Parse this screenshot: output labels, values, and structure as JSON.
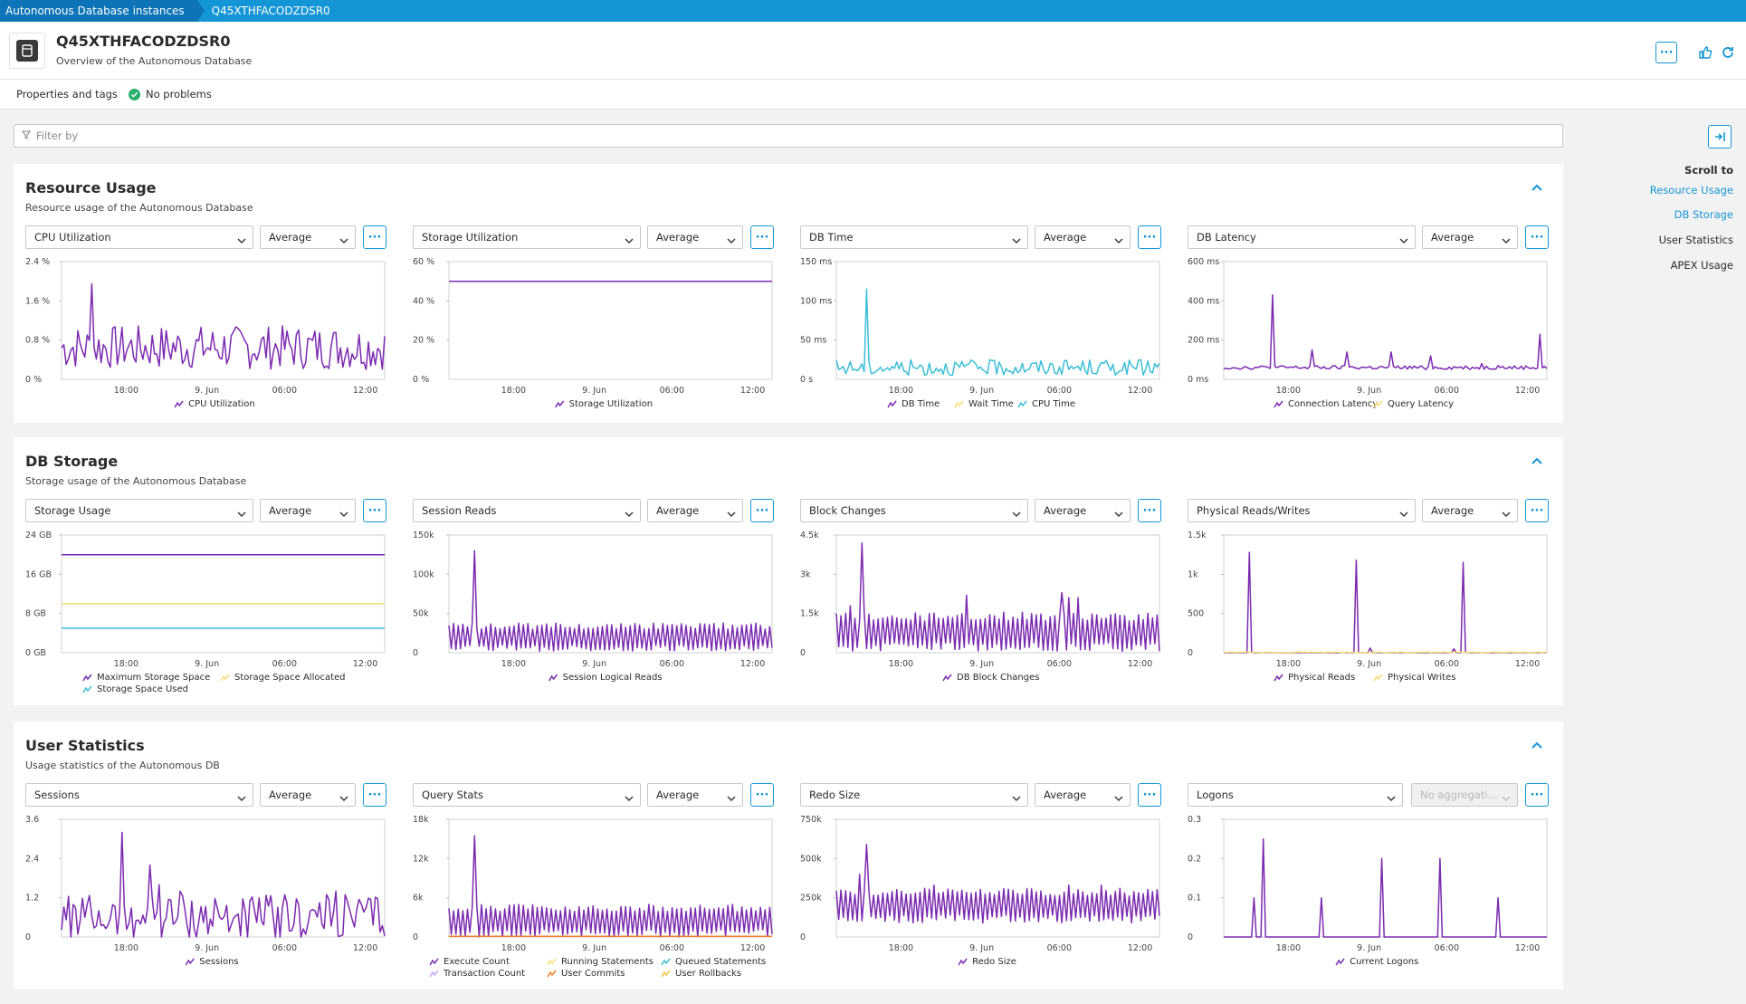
{
  "breadcrumb": [
    "Autonomous Database instances",
    "Q45XTHFACODZDSR0"
  ],
  "header": {
    "title": "Q45XTHFACODZDSR0",
    "subtitle": "Overview of the Autonomous Database"
  },
  "subbar": {
    "properties": "Properties and tags",
    "status": "No problems"
  },
  "filter": {
    "placeholder": "Filter by"
  },
  "scroll_to": {
    "title": "Scroll to",
    "links": [
      {
        "label": "Resource Usage",
        "active": true
      },
      {
        "label": "DB Storage",
        "active": true
      },
      {
        "label": "User Statistics",
        "active": false
      },
      {
        "label": "APEX Usage",
        "active": false
      }
    ]
  },
  "colors": {
    "accent": "#1496d6",
    "purple": "#7b2bb0",
    "yellow": "#f5de73",
    "cyan": "#3cbed7",
    "lavender": "#c9a2ec",
    "orange": "#f07b28",
    "ok": "#2ab06f"
  },
  "x_ticks": [
    "18:00",
    "9. Jun",
    "06:00",
    "12:00"
  ],
  "sections": [
    {
      "title": "Resource Usage",
      "subtitle": "Resource usage of the Autonomous Database",
      "tiles": [
        {
          "metric": "CPU Utilization",
          "agg": "Average",
          "agg_disabled": false,
          "chart_data": {
            "type": "line",
            "y_ticks": [
              "2.4 %",
              "1.6 %",
              "0.8 %",
              "0 %"
            ],
            "ylim": [
              0,
              2.4
            ],
            "series": [
              {
                "name": "CPU Utilization",
                "color": "#7b2bb0",
                "pattern": "noisy",
                "base": 0.65,
                "amp": 0.45,
                "spikes": [
                  [
                    0.09,
                    1.95
                  ]
                ]
              }
            ]
          },
          "legend": [
            {
              "label": "CPU Utilization",
              "color": "#7b2bb0"
            }
          ]
        },
        {
          "metric": "Storage Utilization",
          "agg": "Average",
          "agg_disabled": false,
          "chart_data": {
            "type": "line",
            "y_ticks": [
              "60 %",
              "40 %",
              "20 %",
              "0 %"
            ],
            "ylim": [
              0,
              60
            ],
            "series": [
              {
                "name": "Storage Utilization",
                "color": "#7b2bb0",
                "pattern": "flat",
                "base": 50
              }
            ]
          },
          "legend": [
            {
              "label": "Storage Utilization",
              "color": "#7b2bb0"
            }
          ]
        },
        {
          "metric": "DB Time",
          "agg": "Average",
          "agg_disabled": false,
          "chart_data": {
            "type": "line",
            "y_ticks": [
              "150 ms",
              "100 ms",
              "50 ms",
              "0 s"
            ],
            "ylim": [
              0,
              150
            ],
            "series": [
              {
                "name": "CPU Time",
                "color": "#3cbed7",
                "pattern": "noisy",
                "base": 15,
                "amp": 10,
                "spikes": [
                  [
                    0.09,
                    115
                  ]
                ]
              }
            ]
          },
          "legend": [
            {
              "label": "DB Time",
              "color": "#7b2bb0"
            },
            {
              "label": "Wait Time",
              "color": "#f5de73"
            },
            {
              "label": "CPU Time",
              "color": "#3cbed7"
            }
          ]
        },
        {
          "metric": "DB Latency",
          "agg": "Average",
          "agg_disabled": false,
          "chart_data": {
            "type": "line",
            "y_ticks": [
              "600 ms",
              "400 ms",
              "200 ms",
              "0 ms"
            ],
            "ylim": [
              0,
              600
            ],
            "series": [
              {
                "name": "Connection Latency",
                "color": "#7b2bb0",
                "pattern": "low",
                "base": 60,
                "amp": 10,
                "spikes": [
                  [
                    0.15,
                    430
                  ],
                  [
                    0.27,
                    150
                  ],
                  [
                    0.38,
                    140
                  ],
                  [
                    0.52,
                    140
                  ],
                  [
                    0.64,
                    120
                  ],
                  [
                    0.8,
                    80
                  ],
                  [
                    0.85,
                    70
                  ],
                  [
                    0.98,
                    230
                  ]
                ]
              }
            ]
          },
          "legend": [
            {
              "label": "Connection Latency",
              "color": "#7b2bb0"
            },
            {
              "label": "Query Latency",
              "color": "#f5de73"
            }
          ]
        }
      ]
    },
    {
      "title": "DB Storage",
      "subtitle": "Storage usage of the Autonomous Database",
      "tiles": [
        {
          "metric": "Storage Usage",
          "agg": "Average",
          "agg_disabled": false,
          "chart_data": {
            "type": "line",
            "y_ticks": [
              "24 GB",
              "16 GB",
              "8 GB",
              "0 GB"
            ],
            "ylim": [
              0,
              24
            ],
            "series": [
              {
                "name": "Maximum Storage Space",
                "color": "#7b2bb0",
                "pattern": "flat",
                "base": 20
              },
              {
                "name": "Storage Space Allocated",
                "color": "#f5de73",
                "pattern": "flat",
                "base": 10
              },
              {
                "name": "Storage Space Used",
                "color": "#3cbed7",
                "pattern": "flat",
                "base": 5
              }
            ]
          },
          "legend": [
            {
              "label": "Maximum Storage Space",
              "color": "#7b2bb0"
            },
            {
              "label": "Storage Space Allocated",
              "color": "#f5de73"
            },
            {
              "label": "Storage Space Used",
              "color": "#3cbed7"
            }
          ]
        },
        {
          "metric": "Session Reads",
          "agg": "Average",
          "agg_disabled": false,
          "chart_data": {
            "type": "line",
            "y_ticks": [
              "150k",
              "100k",
              "50k",
              "0"
            ],
            "ylim": [
              0,
              150000
            ],
            "series": [
              {
                "name": "Session Logical Reads",
                "color": "#7b2bb0",
                "pattern": "wave",
                "base": 20000,
                "amp": 18000,
                "spikes": [
                  [
                    0.08,
                    130000
                  ]
                ]
              }
            ]
          },
          "legend": [
            {
              "label": "Session Logical Reads",
              "color": "#7b2bb0"
            }
          ]
        },
        {
          "metric": "Block Changes",
          "agg": "Average",
          "agg_disabled": false,
          "chart_data": {
            "type": "line",
            "y_ticks": [
              "4.5k",
              "3k",
              "1.5k",
              "0"
            ],
            "ylim": [
              0,
              4500
            ],
            "series": [
              {
                "name": "DB Block Changes",
                "color": "#7b2bb0",
                "pattern": "wave",
                "base": 800,
                "amp": 750,
                "spikes": [
                  [
                    0.08,
                    4200
                  ],
                  [
                    0.04,
                    1800
                  ],
                  [
                    0.4,
                    2200
                  ],
                  [
                    0.72,
                    2100
                  ],
                  [
                    0.75,
                    2100
                  ],
                  [
                    0.7,
                    2300
                  ]
                ]
              }
            ]
          },
          "legend": [
            {
              "label": "DB Block Changes",
              "color": "#7b2bb0"
            }
          ]
        },
        {
          "metric": "Physical Reads/Writes",
          "agg": "Average",
          "agg_disabled": false,
          "chart_data": {
            "type": "line",
            "y_ticks": [
              "1.5k",
              "1k",
              "500",
              "0"
            ],
            "ylim": [
              0,
              1500
            ],
            "series": [
              {
                "name": "Physical Reads",
                "color": "#7b2bb0",
                "pattern": "low",
                "base": 0,
                "amp": 4,
                "spikes": [
                  [
                    0.08,
                    1280
                  ],
                  [
                    0.41,
                    1180
                  ],
                  [
                    0.74,
                    1150
                  ],
                  [
                    0.45,
                    60
                  ],
                  [
                    0.71,
                    50
                  ]
                ]
              },
              {
                "name": "Physical Writes",
                "color": "#f5de73",
                "pattern": "low",
                "base": 5,
                "amp": 3,
                "spikes": []
              }
            ]
          },
          "legend": [
            {
              "label": "Physical Reads",
              "color": "#7b2bb0"
            },
            {
              "label": "Physical Writes",
              "color": "#f5de73"
            }
          ]
        }
      ]
    },
    {
      "title": "User Statistics",
      "subtitle": "Usage statistics of the Autonomous DB",
      "tiles": [
        {
          "metric": "Sessions",
          "agg": "Average",
          "agg_disabled": false,
          "chart_data": {
            "type": "line",
            "y_ticks": [
              "3.6",
              "2.4",
              "1.2",
              "0"
            ],
            "ylim": [
              0,
              3.6
            ],
            "series": [
              {
                "name": "Sessions",
                "color": "#7b2bb0",
                "pattern": "noisy",
                "base": 0.6,
                "amp": 0.7,
                "spikes": [
                  [
                    0.19,
                    3.2
                  ],
                  [
                    0.27,
                    2.2
                  ],
                  [
                    0.3,
                    1.6
                  ],
                  [
                    0.37,
                    1.4
                  ],
                  [
                    0.58,
                    1.1
                  ],
                  [
                    0.85,
                    1.4
                  ],
                  [
                    0.93,
                    1.0
                  ]
                ]
              }
            ]
          },
          "legend": [
            {
              "label": "Sessions",
              "color": "#7b2bb0"
            }
          ]
        },
        {
          "metric": "Query Stats",
          "agg": "Average",
          "agg_disabled": false,
          "chart_data": {
            "type": "line",
            "y_ticks": [
              "18k",
              "12k",
              "6k",
              "0"
            ],
            "ylim": [
              0,
              18000
            ],
            "series": [
              {
                "name": "Execute Count",
                "color": "#7b2bb0",
                "pattern": "wave",
                "base": 2500,
                "amp": 2500,
                "spikes": [
                  [
                    0.08,
                    15500
                  ]
                ]
              },
              {
                "name": "User Commits",
                "color": "#f07b28",
                "pattern": "flat",
                "base": 100
              }
            ]
          },
          "legend": [
            {
              "label": "Execute Count",
              "color": "#7b2bb0"
            },
            {
              "label": "Running Statements",
              "color": "#f5de73"
            },
            {
              "label": "Queued Statements",
              "color": "#3cbed7"
            },
            {
              "label": "Transaction Count",
              "color": "#c9a2ec"
            },
            {
              "label": "User Commits",
              "color": "#f07b28"
            },
            {
              "label": "User Rollbacks",
              "color": "#f5c23c"
            }
          ]
        },
        {
          "metric": "Redo Size",
          "agg": "Average",
          "agg_disabled": false,
          "chart_data": {
            "type": "line",
            "y_ticks": [
              "750k",
              "500k",
              "250k",
              "0"
            ],
            "ylim": [
              0,
              750000
            ],
            "series": [
              {
                "name": "Redo Size",
                "color": "#7b2bb0",
                "pattern": "wave",
                "base": 200000,
                "amp": 110000,
                "spikes": [
                  [
                    0.09,
                    590000
                  ],
                  [
                    0.07,
                    400000
                  ],
                  [
                    0.3,
                    330000
                  ],
                  [
                    0.72,
                    330000
                  ],
                  [
                    0.82,
                    330000
                  ]
                ]
              }
            ]
          },
          "legend": [
            {
              "label": "Redo Size",
              "color": "#7b2bb0"
            }
          ]
        },
        {
          "metric": "Logons",
          "agg": "No aggregati...",
          "agg_disabled": true,
          "chart_data": {
            "type": "line",
            "y_ticks": [
              "0.3",
              "0.2",
              "0.1",
              "0"
            ],
            "ylim": [
              0,
              0.3
            ],
            "series": [
              {
                "name": "Current Logons",
                "color": "#7b2bb0",
                "pattern": "low",
                "base": 0,
                "amp": 0,
                "spikes": [
                  [
                    0.09,
                    0.1
                  ],
                  [
                    0.12,
                    0.25
                  ],
                  [
                    0.3,
                    0.1
                  ],
                  [
                    0.49,
                    0.2
                  ],
                  [
                    0.67,
                    0.2
                  ],
                  [
                    0.85,
                    0.1
                  ]
                ]
              }
            ]
          },
          "legend": [
            {
              "label": "Current Logons",
              "color": "#7b2bb0"
            }
          ]
        }
      ]
    }
  ]
}
